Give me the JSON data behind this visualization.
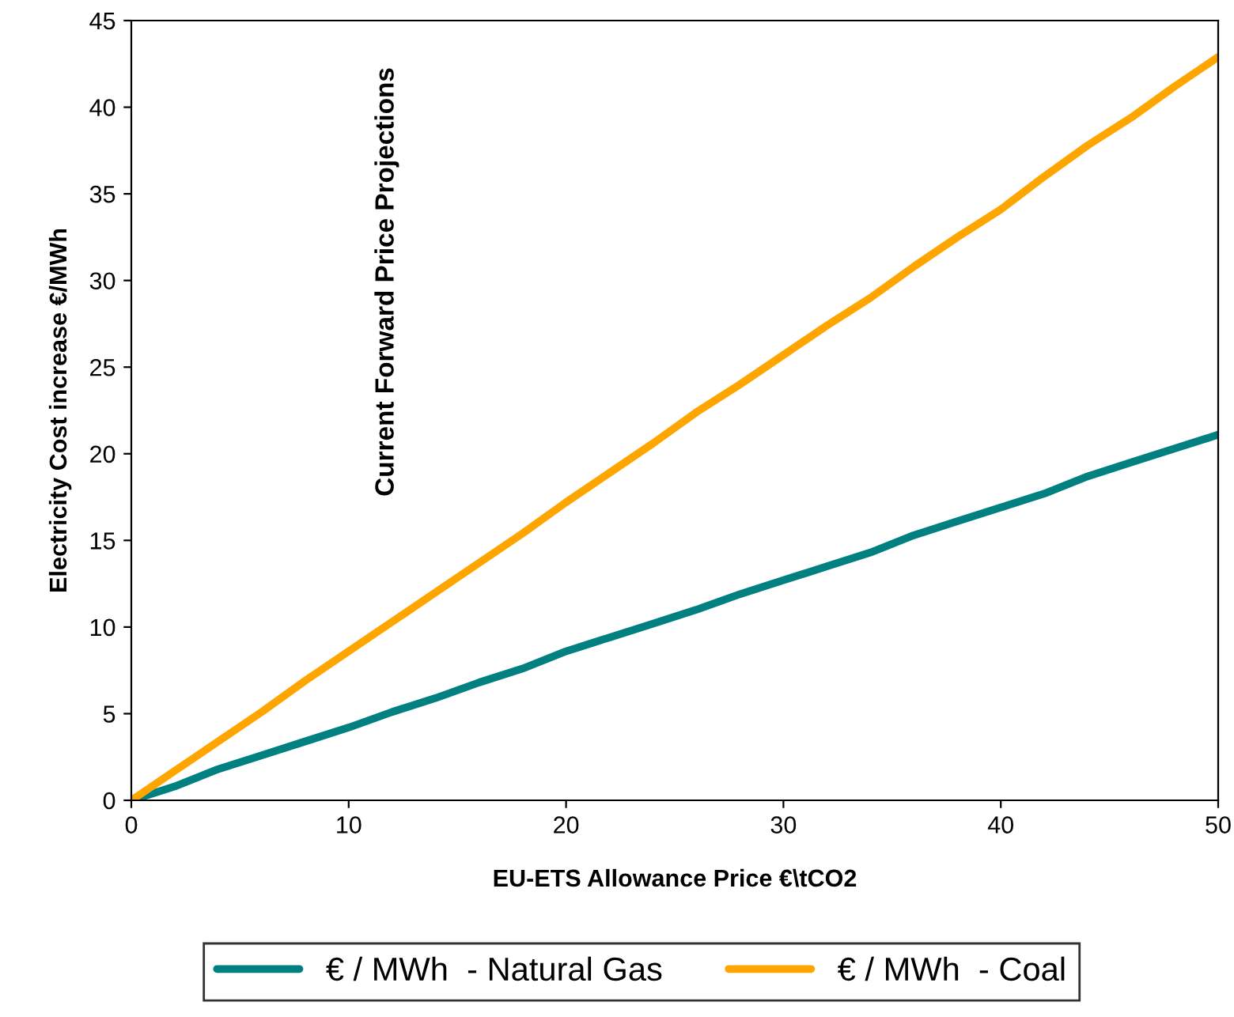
{
  "chart_data": {
    "type": "line",
    "xlabel": "EU-ETS Allowance Price €\\tCO2",
    "ylabel": "Electricity Cost increase €/MWh",
    "annotations": [
      "Current Forward Price Projections"
    ],
    "x": [
      0,
      2,
      4,
      6,
      8,
      10,
      12,
      14,
      16,
      18,
      20,
      22,
      24,
      26,
      28,
      30,
      32,
      34,
      36,
      38,
      40,
      42,
      44,
      46,
      48,
      50
    ],
    "series": [
      {
        "name": "€ / MWh  - Natural Gas",
        "color": "#008080",
        "values": [
          0,
          0.8,
          1.8,
          2.6,
          3.4,
          4.2,
          5.1,
          5.9,
          6.8,
          7.6,
          8.6,
          9.4,
          10.2,
          11.0,
          11.9,
          12.7,
          13.5,
          14.3,
          15.3,
          16.1,
          16.9,
          17.7,
          18.7,
          19.5,
          20.3,
          21.1
        ]
      },
      {
        "name": "€ / MWh  - Coal",
        "color": "#ffa500",
        "values": [
          0,
          1.7,
          3.4,
          5.1,
          6.9,
          8.6,
          10.3,
          12.0,
          13.7,
          15.4,
          17.2,
          18.9,
          20.6,
          22.4,
          24.0,
          25.7,
          27.4,
          29.0,
          30.8,
          32.5,
          34.1,
          36.0,
          37.8,
          39.4,
          41.2,
          42.9
        ]
      }
    ],
    "xlim": [
      0,
      50
    ],
    "xticks": [
      0,
      10,
      20,
      30,
      40,
      50
    ],
    "ylim": [
      0,
      45
    ],
    "yticks": [
      0,
      5,
      10,
      15,
      20,
      25,
      30,
      35,
      40,
      45
    ],
    "grid": false,
    "legend": "bottom",
    "marker": "none",
    "line_style": "solid"
  }
}
